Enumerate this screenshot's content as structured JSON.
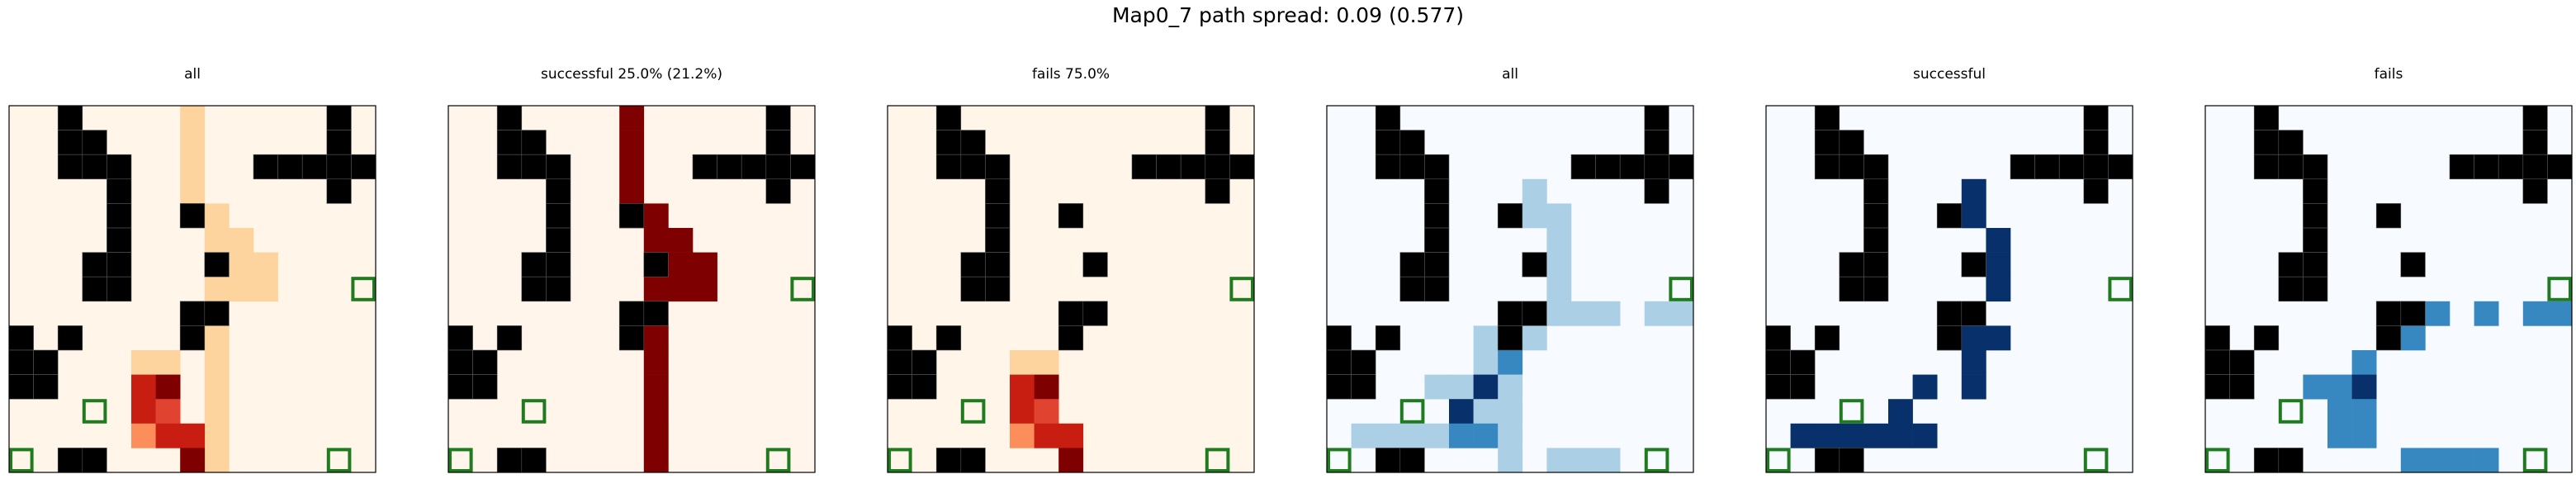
{
  "figure": {
    "title": "Map0_7 path spread: 0.09 (0.577)"
  },
  "chart_data": {
    "type": "heatmap",
    "title": "Map0_7 path spread: 0.09 (0.577)",
    "grid": {
      "rows": 15,
      "cols": 15
    },
    "obstacles": [
      [
        0,
        2
      ],
      [
        0,
        13
      ],
      [
        1,
        2
      ],
      [
        1,
        3
      ],
      [
        1,
        13
      ],
      [
        2,
        2
      ],
      [
        2,
        3
      ],
      [
        2,
        4
      ],
      [
        2,
        10
      ],
      [
        2,
        11
      ],
      [
        2,
        12
      ],
      [
        2,
        13
      ],
      [
        2,
        14
      ],
      [
        3,
        4
      ],
      [
        3,
        13
      ],
      [
        4,
        4
      ],
      [
        4,
        7
      ],
      [
        5,
        4
      ],
      [
        6,
        3
      ],
      [
        6,
        4
      ],
      [
        6,
        8
      ],
      [
        7,
        3
      ],
      [
        7,
        4
      ],
      [
        8,
        7
      ],
      [
        8,
        8
      ],
      [
        9,
        0
      ],
      [
        9,
        2
      ],
      [
        9,
        7
      ],
      [
        10,
        0
      ],
      [
        10,
        1
      ],
      [
        11,
        0
      ],
      [
        11,
        1
      ],
      [
        14,
        2
      ],
      [
        14,
        3
      ]
    ],
    "goal_markers": [
      [
        7,
        14
      ],
      [
        12,
        3
      ],
      [
        14,
        0
      ],
      [
        14,
        13
      ]
    ],
    "panels": [
      {
        "title": "all",
        "colormap": "Oranges-Reds",
        "cells": [
          [
            0,
            7,
            1
          ],
          [
            1,
            7,
            1
          ],
          [
            2,
            7,
            1
          ],
          [
            3,
            7,
            1
          ],
          [
            4,
            7,
            1
          ],
          [
            4,
            8,
            1
          ],
          [
            5,
            8,
            1
          ],
          [
            5,
            9,
            1
          ],
          [
            6,
            9,
            1
          ],
          [
            6,
            10,
            1
          ],
          [
            7,
            9,
            1
          ],
          [
            7,
            10,
            1
          ],
          [
            7,
            8,
            1
          ],
          [
            8,
            8,
            1
          ],
          [
            9,
            8,
            1
          ],
          [
            10,
            8,
            1
          ],
          [
            11,
            8,
            1
          ],
          [
            12,
            8,
            1
          ],
          [
            13,
            8,
            1
          ],
          [
            14,
            8,
            1
          ],
          [
            10,
            5,
            1
          ],
          [
            10,
            6,
            1
          ],
          [
            11,
            5,
            4
          ],
          [
            11,
            6,
            5
          ],
          [
            12,
            5,
            4
          ],
          [
            12,
            6,
            3
          ],
          [
            13,
            5,
            2
          ],
          [
            13,
            6,
            4
          ],
          [
            13,
            7,
            4
          ],
          [
            14,
            7,
            5
          ]
        ]
      },
      {
        "title": "successful 25.0% (21.2%)",
        "colormap": "Reds",
        "cells": [
          [
            0,
            7,
            5
          ],
          [
            1,
            7,
            5
          ],
          [
            2,
            7,
            5
          ],
          [
            3,
            7,
            5
          ],
          [
            4,
            7,
            5
          ],
          [
            4,
            8,
            5
          ],
          [
            5,
            8,
            5
          ],
          [
            5,
            9,
            5
          ],
          [
            6,
            9,
            5
          ],
          [
            6,
            10,
            5
          ],
          [
            7,
            9,
            5
          ],
          [
            7,
            10,
            5
          ],
          [
            7,
            8,
            5
          ],
          [
            8,
            8,
            5
          ],
          [
            9,
            8,
            5
          ],
          [
            10,
            8,
            5
          ],
          [
            11,
            8,
            5
          ],
          [
            12,
            8,
            5
          ],
          [
            13,
            8,
            5
          ],
          [
            14,
            8,
            5
          ]
        ]
      },
      {
        "title": "fails 75.0%",
        "colormap": "Oranges-Reds",
        "cells": [
          [
            10,
            5,
            1
          ],
          [
            10,
            6,
            1
          ],
          [
            11,
            5,
            4
          ],
          [
            11,
            6,
            5
          ],
          [
            12,
            5,
            4
          ],
          [
            12,
            6,
            3
          ],
          [
            13,
            5,
            2
          ],
          [
            13,
            6,
            4
          ],
          [
            13,
            7,
            4
          ],
          [
            14,
            7,
            5
          ]
        ]
      },
      {
        "title": "all",
        "colormap": "Blues",
        "cells": [
          [
            3,
            8,
            1
          ],
          [
            4,
            8,
            1
          ],
          [
            4,
            9,
            1
          ],
          [
            5,
            9,
            1
          ],
          [
            6,
            9,
            1
          ],
          [
            7,
            9,
            1
          ],
          [
            8,
            9,
            1
          ],
          [
            8,
            10,
            1
          ],
          [
            8,
            11,
            1
          ],
          [
            8,
            13,
            1
          ],
          [
            8,
            14,
            1
          ],
          [
            9,
            6,
            1
          ],
          [
            9,
            7,
            1
          ],
          [
            9,
            8,
            1
          ],
          [
            10,
            6,
            1
          ],
          [
            10,
            7,
            3
          ],
          [
            11,
            4,
            1
          ],
          [
            11,
            5,
            1
          ],
          [
            11,
            6,
            5
          ],
          [
            11,
            7,
            1
          ],
          [
            12,
            5,
            5
          ],
          [
            12,
            6,
            1
          ],
          [
            12,
            7,
            1
          ],
          [
            13,
            1,
            1
          ],
          [
            13,
            2,
            1
          ],
          [
            13,
            3,
            1
          ],
          [
            13,
            4,
            1
          ],
          [
            13,
            5,
            3
          ],
          [
            13,
            6,
            3
          ],
          [
            13,
            7,
            1
          ],
          [
            14,
            7,
            1
          ],
          [
            14,
            9,
            1
          ],
          [
            14,
            10,
            1
          ],
          [
            14,
            11,
            1
          ]
        ]
      },
      {
        "title": "successful",
        "colormap": "Blues",
        "cells": [
          [
            3,
            8,
            5
          ],
          [
            4,
            8,
            5
          ],
          [
            5,
            9,
            5
          ],
          [
            6,
            9,
            5
          ],
          [
            7,
            9,
            5
          ],
          [
            9,
            7,
            5
          ],
          [
            9,
            8,
            5
          ],
          [
            9,
            9,
            5
          ],
          [
            10,
            8,
            5
          ],
          [
            11,
            6,
            5
          ],
          [
            11,
            8,
            5
          ],
          [
            12,
            5,
            5
          ],
          [
            13,
            1,
            5
          ],
          [
            13,
            2,
            5
          ],
          [
            13,
            3,
            5
          ],
          [
            13,
            4,
            5
          ],
          [
            13,
            5,
            5
          ],
          [
            13,
            6,
            5
          ]
        ]
      },
      {
        "title": "fails",
        "colormap": "Blues",
        "cells": [
          [
            8,
            9,
            3
          ],
          [
            8,
            11,
            3
          ],
          [
            8,
            13,
            3
          ],
          [
            8,
            14,
            3
          ],
          [
            9,
            8,
            3
          ],
          [
            10,
            6,
            3
          ],
          [
            11,
            4,
            3
          ],
          [
            11,
            5,
            3
          ],
          [
            11,
            6,
            5
          ],
          [
            12,
            5,
            3
          ],
          [
            12,
            6,
            3
          ],
          [
            13,
            5,
            3
          ],
          [
            13,
            6,
            3
          ],
          [
            14,
            8,
            3
          ],
          [
            14,
            9,
            3
          ],
          [
            14,
            10,
            3
          ],
          [
            14,
            11,
            3
          ]
        ]
      }
    ]
  },
  "colors": {
    "obstacle": "#000000",
    "goal": "#1e7b1e",
    "Oranges-Reds": [
      "#fff5e9",
      "#fdd49e",
      "#fb8e5a",
      "#e04330",
      "#c81d11",
      "#7f0000"
    ],
    "Reds": [
      "#fff5eb",
      "#fdd49e",
      "#fb8e5a",
      "#e04330",
      "#c81d11",
      "#7f0000"
    ],
    "Blues": [
      "#f7fbff",
      "#abd0e6",
      "#6aadd6",
      "#3787c0",
      "#1a5da8",
      "#08306b"
    ]
  }
}
